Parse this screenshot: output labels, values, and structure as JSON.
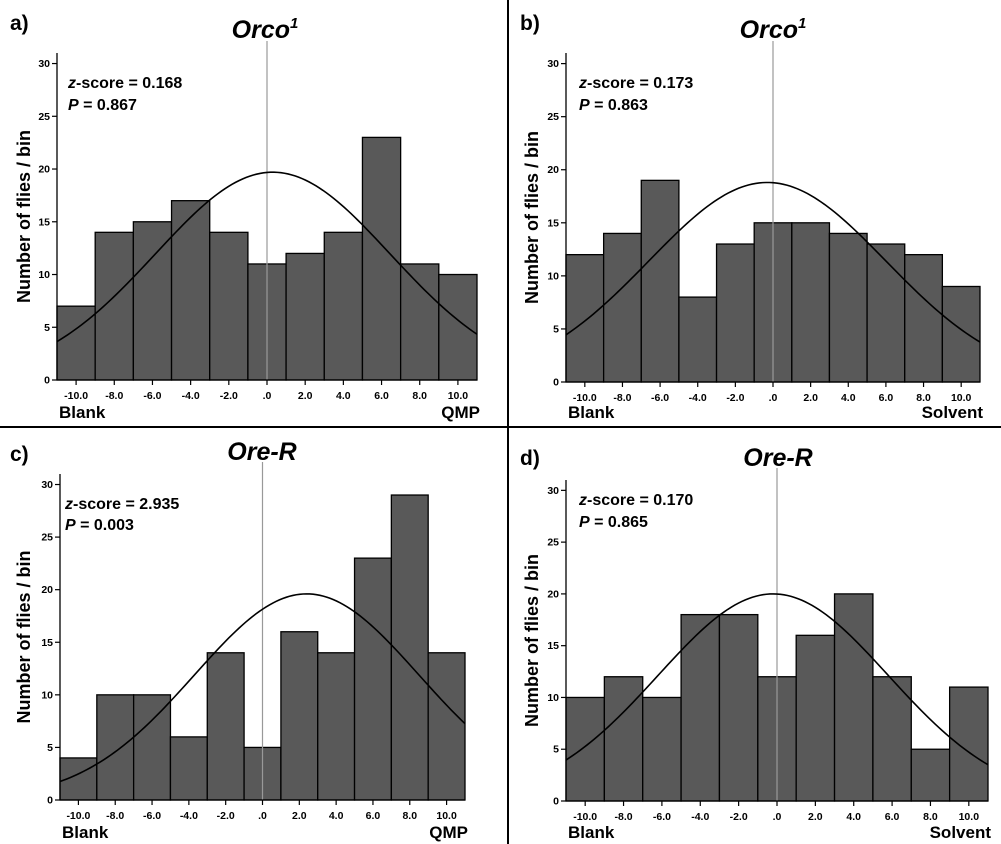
{
  "colors": {
    "bar_fill": "#595959",
    "bar_stroke": "#000000",
    "curve": "#000000",
    "zero_line": "#999999"
  },
  "chart_data": [
    {
      "panel_label": "a)",
      "type": "bar",
      "title": "Orco",
      "title_superscript": "1",
      "ylabel": "Number of flies / bin",
      "xlabel_left": "Blank",
      "xlabel_right": "QMP",
      "x_tick_labels": [
        "-10.0",
        "-8.0",
        "-6.0",
        "-4.0",
        "-2.0",
        ".0",
        "2.0",
        "4.0",
        "6.0",
        "8.0",
        "10.0"
      ],
      "x_ticks": [
        -10,
        -8,
        -6,
        -4,
        -2,
        0,
        2,
        4,
        6,
        8,
        10
      ],
      "y_ticks": [
        0,
        5,
        10,
        15,
        20,
        25,
        30
      ],
      "xlim": [
        -11,
        11
      ],
      "ylim": [
        0,
        31
      ],
      "bin_edges": [
        -11,
        -9,
        -7,
        -5,
        -3,
        -1,
        1,
        3,
        5,
        7,
        9,
        11
      ],
      "values": [
        7,
        14,
        15,
        17,
        14,
        11,
        12,
        14,
        23,
        11,
        10
      ],
      "normal_curve": {
        "mean": 0.3,
        "sd": 6.15,
        "peak": 19.7
      },
      "zscore_label": "z",
      "zscore_text": "-score = 0.168",
      "p_label": "P",
      "p_text": " = 0.867"
    },
    {
      "panel_label": "b)",
      "type": "bar",
      "title": "Orco",
      "title_superscript": "1",
      "ylabel": "Number of flies / bin",
      "xlabel_left": "Blank",
      "xlabel_right": "Solvent",
      "x_tick_labels": [
        "-10.0",
        "-8.0",
        "-6.0",
        "-4.0",
        "-2.0",
        ".0",
        "2.0",
        "4.0",
        "6.0",
        "8.0",
        "10.0"
      ],
      "x_ticks": [
        -10,
        -8,
        -6,
        -4,
        -2,
        0,
        2,
        4,
        6,
        8,
        10
      ],
      "y_ticks": [
        0,
        5,
        10,
        15,
        20,
        25,
        30
      ],
      "xlim": [
        -11,
        11
      ],
      "ylim": [
        0,
        31
      ],
      "bin_edges": [
        -11,
        -9,
        -7,
        -5,
        -3,
        -1,
        1,
        3,
        5,
        7,
        9,
        11
      ],
      "values": [
        12,
        14,
        19,
        8,
        13,
        15,
        15,
        14,
        13,
        12,
        9
      ],
      "normal_curve": {
        "mean": -0.3,
        "sd": 6.3,
        "peak": 18.8
      },
      "zscore_label": "z",
      "zscore_text": "-score = 0.173",
      "p_label": "P",
      "p_text": " = 0.863"
    },
    {
      "panel_label": "c)",
      "type": "bar",
      "title": "Ore-R",
      "title_superscript": "",
      "ylabel": "Number of flies / bin",
      "xlabel_left": "Blank",
      "xlabel_right": "QMP",
      "x_tick_labels": [
        "-10.0",
        "-8.0",
        "-6.0",
        "-4.0",
        "-2.0",
        ".0",
        "2.0",
        "4.0",
        "6.0",
        "8.0",
        "10.0"
      ],
      "x_ticks": [
        -10,
        -8,
        -6,
        -4,
        -2,
        0,
        2,
        4,
        6,
        8,
        10
      ],
      "y_ticks": [
        0,
        5,
        10,
        15,
        20,
        25,
        30
      ],
      "xlim": [
        -11,
        11
      ],
      "ylim": [
        0,
        31
      ],
      "bin_edges": [
        -11,
        -9,
        -7,
        -5,
        -3,
        -1,
        1,
        3,
        5,
        7,
        9,
        11
      ],
      "values": [
        4,
        10,
        10,
        6,
        14,
        5,
        16,
        14,
        23,
        29,
        14
      ],
      "normal_curve": {
        "mean": 2.4,
        "sd": 6.1,
        "peak": 19.6
      },
      "zscore_label": "z",
      "zscore_text": "-score = 2.935",
      "p_label": "P",
      "p_text": " = 0.003"
    },
    {
      "panel_label": "d)",
      "type": "bar",
      "title": "Ore-R",
      "title_superscript": "",
      "ylabel": "Number of flies / bin",
      "xlabel_left": "Blank",
      "xlabel_right": "Solvent",
      "x_tick_labels": [
        "-10.0",
        "-8.0",
        "-6.0",
        "-4.0",
        "-2.0",
        ".0",
        "2.0",
        "4.0",
        "6.0",
        "8.0",
        "10.0"
      ],
      "x_ticks": [
        -10,
        -8,
        -6,
        -4,
        -2,
        0,
        2,
        4,
        6,
        8,
        10
      ],
      "y_ticks": [
        0,
        5,
        10,
        15,
        20,
        25,
        30
      ],
      "xlim": [
        -11,
        11
      ],
      "ylim": [
        0,
        31
      ],
      "bin_edges": [
        -11,
        -9,
        -7,
        -5,
        -3,
        -1,
        1,
        3,
        5,
        7,
        9,
        11
      ],
      "values": [
        10,
        12,
        10,
        18,
        18,
        12,
        16,
        20,
        12,
        5,
        11
      ],
      "normal_curve": {
        "mean": -0.2,
        "sd": 6.0,
        "peak": 20.0
      },
      "zscore_label": "z",
      "zscore_text": "-score = 0.170",
      "p_label": "P",
      "p_text": " = 0.865"
    }
  ]
}
